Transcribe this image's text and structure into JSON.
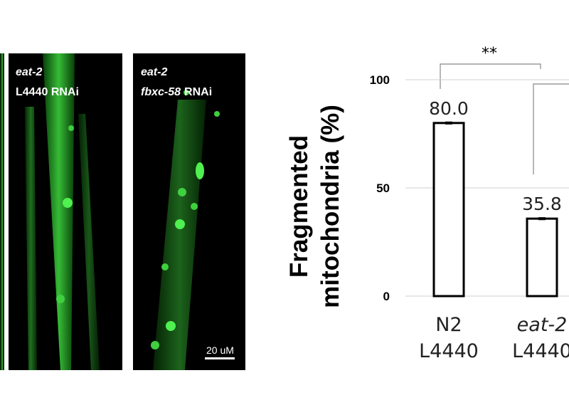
{
  "panels": [
    {
      "label": [
        "eat-2",
        "L4440 RNAi"
      ]
    },
    {
      "label": [
        "eat-2",
        [
          "fbxc-58",
          "RNAi"
        ]
      ],
      "scale_bar": "20 uM"
    }
  ],
  "chart_data": {
    "type": "bar",
    "y_label": [
      "Fragmented",
      "mitochondria (%)"
    ],
    "categories": [
      [
        "N2",
        "L4440"
      ],
      [
        "eat-2",
        "L4440"
      ]
    ],
    "values": [
      80.0,
      35.8
    ],
    "value_labels": [
      "80.0",
      "35.8"
    ],
    "errors": [
      0.5,
      0.5
    ],
    "color": "#ffffff",
    "edge_color": "#000000",
    "ylim": [
      0,
      100
    ],
    "yticks": [
      0,
      50,
      100
    ],
    "grid": true,
    "annotations": [
      "**"
    ]
  }
}
